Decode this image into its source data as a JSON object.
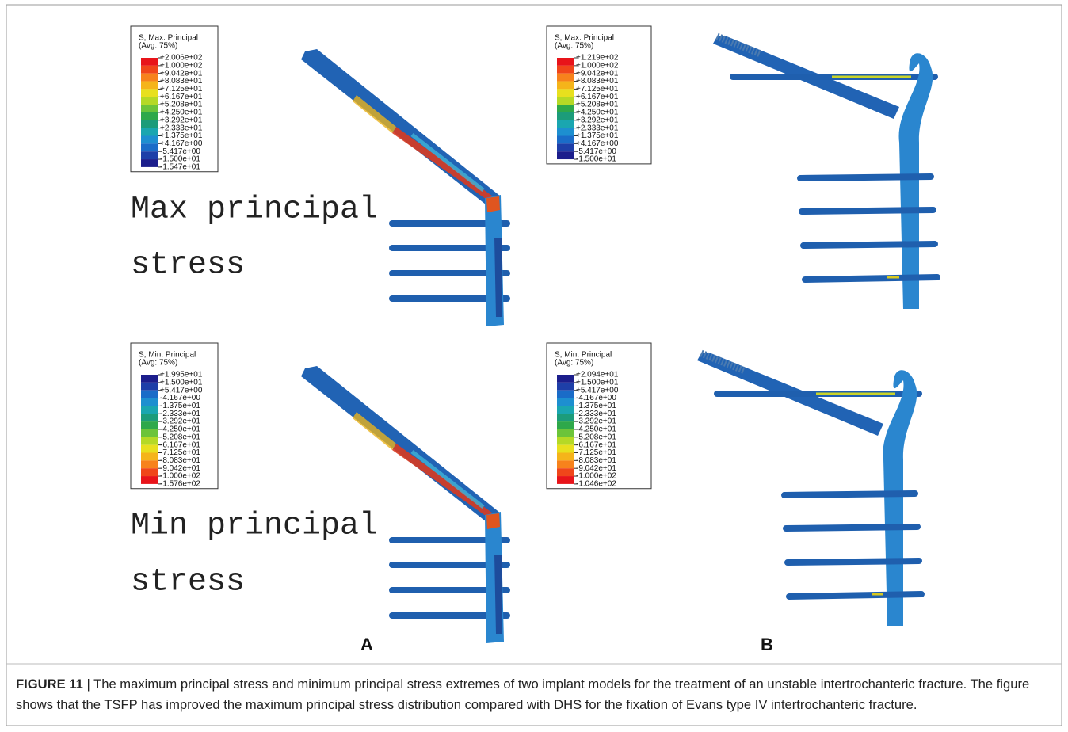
{
  "panels": [
    {
      "legend": {
        "title": [
          "S, Max. Principal",
          "(Avg: 75%)"
        ],
        "kind": "max",
        "labels": [
          "+2.006e+02",
          "+1.000e+02",
          "+9.042e+01",
          "+8.083e+01",
          "+7.125e+01",
          "+6.167e+01",
          "+5.208e+01",
          "+4.250e+01",
          "+3.292e+01",
          "+2.333e+01",
          "+1.375e+01",
          "+4.167e+00",
          "-5.417e+00",
          "-1.500e+01",
          "-1.547e+01"
        ]
      },
      "label": [
        "Max principal",
        "stress"
      ]
    },
    {
      "legend": {
        "title": [
          "S, Max. Principal",
          "(Avg: 75%)"
        ],
        "kind": "max",
        "labels": [
          "+1.219e+02",
          "+1.000e+02",
          "+9.042e+01",
          "+8.083e+01",
          "+7.125e+01",
          "+6.167e+01",
          "+5.208e+01",
          "+4.250e+01",
          "+3.292e+01",
          "+2.333e+01",
          "+1.375e+01",
          "+4.167e+00",
          "-5.417e+00",
          "-1.500e+01"
        ]
      }
    },
    {
      "legend": {
        "title": [
          "S, Min. Principal",
          "(Avg: 75%)"
        ],
        "kind": "min",
        "labels": [
          "+1.995e+01",
          "+1.500e+01",
          "+5.417e+00",
          "-4.167e+00",
          "-1.375e+01",
          "-2.333e+01",
          "-3.292e+01",
          "-4.250e+01",
          "-5.208e+01",
          "-6.167e+01",
          "-7.125e+01",
          "-8.083e+01",
          "-9.042e+01",
          "-1.000e+02",
          "-1.576e+02"
        ]
      },
      "label": [
        "Min principal",
        "stress"
      ]
    },
    {
      "legend": {
        "title": [
          "S, Min. Principal",
          "(Avg: 75%)"
        ],
        "kind": "min",
        "labels": [
          "+2.094e+01",
          "+1.500e+01",
          "+5.417e+00",
          "-4.167e+00",
          "-1.375e+01",
          "-2.333e+01",
          "-3.292e+01",
          "-4.250e+01",
          "-5.208e+01",
          "-6.167e+01",
          "-7.125e+01",
          "-8.083e+01",
          "-9.042e+01",
          "-1.000e+02",
          "-1.046e+02"
        ]
      }
    }
  ],
  "column_labels": [
    "A",
    "B"
  ],
  "caption": {
    "figure": "FIGURE 11",
    "separator": "|",
    "text": "The maximum principal stress and minimum principal stress extremes of two implant models for the treatment of an unstable intertrochanteric fracture. The figure shows that the TSFP has improved the maximum principal stress distribution compared with DHS for the fixation of Evans type IV intertrochanteric fracture."
  }
}
